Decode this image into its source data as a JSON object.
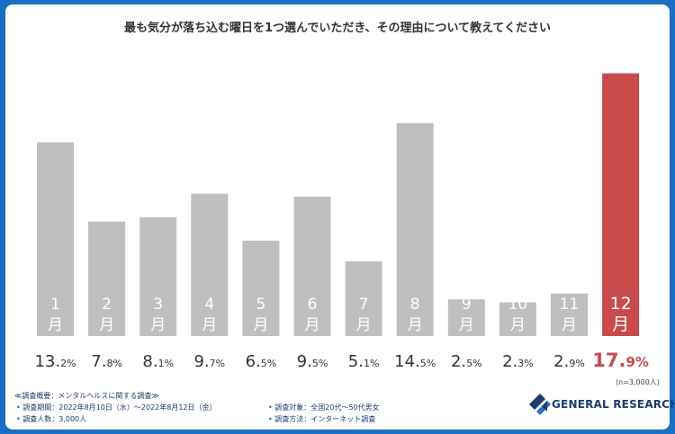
{
  "title": "最も気分が落ち込む曜日を1つ選んでいただき、その理由について教えてください",
  "sample_note": "(n=3,000人)",
  "colors": {
    "bar": "#bfbfbf",
    "highlight": "#c94a4a",
    "label_dark": "#333333",
    "label_highlight": "#c94a4a",
    "navy": "#1f3a6e"
  },
  "chart_data": {
    "type": "bar",
    "categories": [
      "1月",
      "2月",
      "3月",
      "4月",
      "5月",
      "6月",
      "7月",
      "8月",
      "9月",
      "10月",
      "11月",
      "12月"
    ],
    "month_numbers": [
      "1",
      "2",
      "3",
      "4",
      "5",
      "6",
      "7",
      "8",
      "9",
      "10",
      "11",
      "12"
    ],
    "month_suffix": "月",
    "values": [
      13.2,
      7.8,
      8.1,
      9.7,
      6.5,
      9.5,
      5.1,
      14.5,
      2.5,
      2.3,
      2.9,
      17.9
    ],
    "value_int": [
      "13.",
      "7.",
      "8.",
      "9.",
      "6.",
      "9.",
      "5.",
      "14.",
      "2.",
      "2.",
      "2.",
      "17."
    ],
    "value_dec": [
      "2%",
      "8%",
      "1%",
      "7%",
      "5%",
      "5%",
      "1%",
      "5%",
      "5%",
      "3%",
      "9%",
      "9%"
    ],
    "highlight_index": 11,
    "ylim": [
      0,
      18
    ]
  },
  "footer": {
    "heading": "≪調査概要：メンタルヘルスに関する調査≫",
    "left": [
      "調査期間：2022年8月10日（水）～2022年8月12日（金）",
      "調査人数：3,000人"
    ],
    "right": [
      "調査対象：全国20代～50代男女",
      "調査方法：インターネット調査"
    ],
    "bullet": "•"
  },
  "logo": {
    "text": "GENERAL RESEARCH",
    "icon": "general-research-logo-icon"
  }
}
